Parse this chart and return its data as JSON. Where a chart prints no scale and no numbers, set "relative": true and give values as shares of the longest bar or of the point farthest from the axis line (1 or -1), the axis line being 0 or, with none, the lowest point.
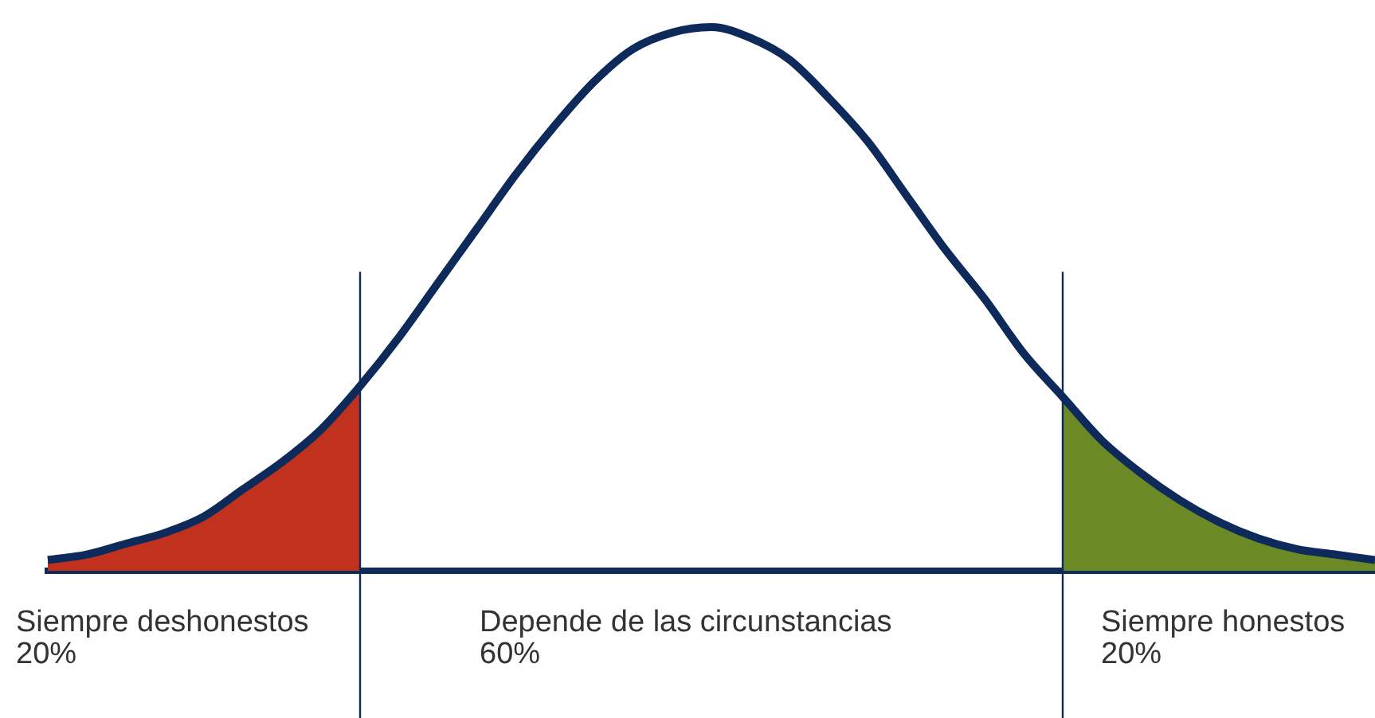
{
  "chart_data": {
    "type": "line",
    "relative": true,
    "grid": false,
    "legend": false,
    "marker": "none",
    "categories": [
      null,
      null,
      null,
      null,
      null,
      null,
      null,
      null,
      null,
      null,
      null,
      null,
      null,
      null,
      null,
      null,
      null,
      null,
      null,
      null,
      null,
      null,
      null,
      null,
      null,
      null,
      null,
      null,
      null,
      null,
      null,
      null,
      null,
      null,
      null
    ],
    "series": [
      {
        "type": "area",
        "color": "#c0321e",
        "values": [
          0.02,
          0.03,
          0.05,
          0.07,
          0.1,
          0.15,
          0.2,
          0.26,
          0.34,
          null,
          null,
          null,
          null,
          null,
          null,
          null,
          null,
          null,
          null,
          null,
          null,
          null,
          null,
          null,
          null,
          null,
          null,
          null,
          null,
          null,
          null,
          null,
          null,
          null,
          null
        ]
      },
      {
        "type": "area",
        "color": "#6b8a26",
        "values": [
          null,
          null,
          null,
          null,
          null,
          null,
          null,
          null,
          null,
          null,
          null,
          null,
          null,
          null,
          null,
          null,
          null,
          null,
          null,
          null,
          null,
          null,
          null,
          null,
          null,
          null,
          0.32,
          0.24,
          0.18,
          0.13,
          0.09,
          0.06,
          0.04,
          0.03,
          0.02
        ]
      },
      {
        "color": "#0d2a5a",
        "values": [
          0.02,
          0.03,
          0.05,
          0.07,
          0.1,
          0.15,
          0.2,
          0.26,
          0.34,
          0.43,
          0.53,
          0.63,
          0.73,
          0.82,
          0.9,
          0.96,
          0.99,
          1,
          0.98,
          0.94,
          0.87,
          0.79,
          0.69,
          0.59,
          0.5,
          0.4,
          0.32,
          0.24,
          0.18,
          0.13,
          0.09,
          0.06,
          0.04,
          0.03,
          0.02
        ]
      }
    ],
    "annotations": [
      "Siempre deshonestos\n20%",
      "Depende de las circunstancias\n60%",
      "Siempre honestos\n20%"
    ]
  }
}
